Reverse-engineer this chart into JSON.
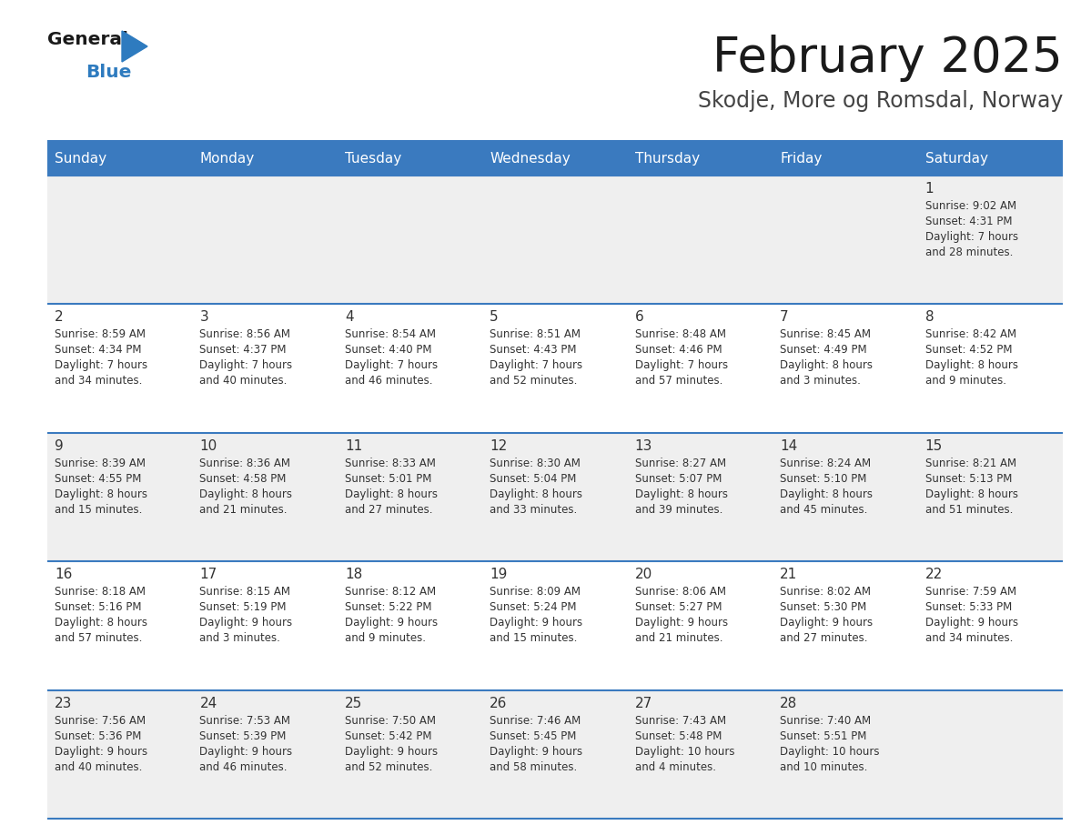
{
  "title": "February 2025",
  "subtitle": "Skodje, More og Romsdal, Norway",
  "header_bg": "#3a7abf",
  "header_text": "#ffffff",
  "cell_bg_odd": "#efefef",
  "cell_bg_even": "#ffffff",
  "border_color": "#3a7abf",
  "text_color": "#333333",
  "day_headers": [
    "Sunday",
    "Monday",
    "Tuesday",
    "Wednesday",
    "Thursday",
    "Friday",
    "Saturday"
  ],
  "days": [
    {
      "day": 1,
      "col": 6,
      "row": 0,
      "sunrise": "9:02 AM",
      "sunset": "4:31 PM",
      "daylight": "7 hours and 28 minutes."
    },
    {
      "day": 2,
      "col": 0,
      "row": 1,
      "sunrise": "8:59 AM",
      "sunset": "4:34 PM",
      "daylight": "7 hours and 34 minutes."
    },
    {
      "day": 3,
      "col": 1,
      "row": 1,
      "sunrise": "8:56 AM",
      "sunset": "4:37 PM",
      "daylight": "7 hours and 40 minutes."
    },
    {
      "day": 4,
      "col": 2,
      "row": 1,
      "sunrise": "8:54 AM",
      "sunset": "4:40 PM",
      "daylight": "7 hours and 46 minutes."
    },
    {
      "day": 5,
      "col": 3,
      "row": 1,
      "sunrise": "8:51 AM",
      "sunset": "4:43 PM",
      "daylight": "7 hours and 52 minutes."
    },
    {
      "day": 6,
      "col": 4,
      "row": 1,
      "sunrise": "8:48 AM",
      "sunset": "4:46 PM",
      "daylight": "7 hours and 57 minutes."
    },
    {
      "day": 7,
      "col": 5,
      "row": 1,
      "sunrise": "8:45 AM",
      "sunset": "4:49 PM",
      "daylight": "8 hours and 3 minutes."
    },
    {
      "day": 8,
      "col": 6,
      "row": 1,
      "sunrise": "8:42 AM",
      "sunset": "4:52 PM",
      "daylight": "8 hours and 9 minutes."
    },
    {
      "day": 9,
      "col": 0,
      "row": 2,
      "sunrise": "8:39 AM",
      "sunset": "4:55 PM",
      "daylight": "8 hours and 15 minutes."
    },
    {
      "day": 10,
      "col": 1,
      "row": 2,
      "sunrise": "8:36 AM",
      "sunset": "4:58 PM",
      "daylight": "8 hours and 21 minutes."
    },
    {
      "day": 11,
      "col": 2,
      "row": 2,
      "sunrise": "8:33 AM",
      "sunset": "5:01 PM",
      "daylight": "8 hours and 27 minutes."
    },
    {
      "day": 12,
      "col": 3,
      "row": 2,
      "sunrise": "8:30 AM",
      "sunset": "5:04 PM",
      "daylight": "8 hours and 33 minutes."
    },
    {
      "day": 13,
      "col": 4,
      "row": 2,
      "sunrise": "8:27 AM",
      "sunset": "5:07 PM",
      "daylight": "8 hours and 39 minutes."
    },
    {
      "day": 14,
      "col": 5,
      "row": 2,
      "sunrise": "8:24 AM",
      "sunset": "5:10 PM",
      "daylight": "8 hours and 45 minutes."
    },
    {
      "day": 15,
      "col": 6,
      "row": 2,
      "sunrise": "8:21 AM",
      "sunset": "5:13 PM",
      "daylight": "8 hours and 51 minutes."
    },
    {
      "day": 16,
      "col": 0,
      "row": 3,
      "sunrise": "8:18 AM",
      "sunset": "5:16 PM",
      "daylight": "8 hours and 57 minutes."
    },
    {
      "day": 17,
      "col": 1,
      "row": 3,
      "sunrise": "8:15 AM",
      "sunset": "5:19 PM",
      "daylight": "9 hours and 3 minutes."
    },
    {
      "day": 18,
      "col": 2,
      "row": 3,
      "sunrise": "8:12 AM",
      "sunset": "5:22 PM",
      "daylight": "9 hours and 9 minutes."
    },
    {
      "day": 19,
      "col": 3,
      "row": 3,
      "sunrise": "8:09 AM",
      "sunset": "5:24 PM",
      "daylight": "9 hours and 15 minutes."
    },
    {
      "day": 20,
      "col": 4,
      "row": 3,
      "sunrise": "8:06 AM",
      "sunset": "5:27 PM",
      "daylight": "9 hours and 21 minutes."
    },
    {
      "day": 21,
      "col": 5,
      "row": 3,
      "sunrise": "8:02 AM",
      "sunset": "5:30 PM",
      "daylight": "9 hours and 27 minutes."
    },
    {
      "day": 22,
      "col": 6,
      "row": 3,
      "sunrise": "7:59 AM",
      "sunset": "5:33 PM",
      "daylight": "9 hours and 34 minutes."
    },
    {
      "day": 23,
      "col": 0,
      "row": 4,
      "sunrise": "7:56 AM",
      "sunset": "5:36 PM",
      "daylight": "9 hours and 40 minutes."
    },
    {
      "day": 24,
      "col": 1,
      "row": 4,
      "sunrise": "7:53 AM",
      "sunset": "5:39 PM",
      "daylight": "9 hours and 46 minutes."
    },
    {
      "day": 25,
      "col": 2,
      "row": 4,
      "sunrise": "7:50 AM",
      "sunset": "5:42 PM",
      "daylight": "9 hours and 52 minutes."
    },
    {
      "day": 26,
      "col": 3,
      "row": 4,
      "sunrise": "7:46 AM",
      "sunset": "5:45 PM",
      "daylight": "9 hours and 58 minutes."
    },
    {
      "day": 27,
      "col": 4,
      "row": 4,
      "sunrise": "7:43 AM",
      "sunset": "5:48 PM",
      "daylight": "10 hours and 4 minutes."
    },
    {
      "day": 28,
      "col": 5,
      "row": 4,
      "sunrise": "7:40 AM",
      "sunset": "5:51 PM",
      "daylight": "10 hours and 10 minutes."
    }
  ],
  "num_rows": 5,
  "num_cols": 7,
  "logo_general_color": "#1a1a1a",
  "logo_blue_color": "#2e7bbf",
  "logo_triangle_color": "#2e7bbf"
}
